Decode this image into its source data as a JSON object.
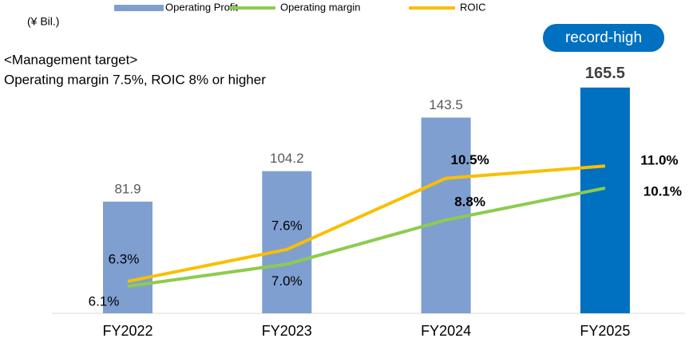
{
  "chart_data": {
    "type": "bar_line",
    "unit_label": "(¥ Bil.)",
    "annotations": [
      "<Management target>",
      "Operating margin 7.5%, ROIC 8% or higher",
      "record-high"
    ],
    "categories": [
      "FY2022",
      "FY2023",
      "FY2024",
      "FY2025"
    ],
    "series": [
      {
        "name": "Operating Profit",
        "type": "bar",
        "colors": [
          "#7f9fd1",
          "#7f9fd1",
          "#7f9fd1",
          "#0070c0"
        ],
        "values": [
          81.9,
          104.2,
          143.5,
          165.5
        ]
      },
      {
        "name": "Operating margin",
        "type": "line",
        "axis": "y2",
        "color": "#8ccc4f",
        "values": [
          6.1,
          7.0,
          8.8,
          10.1
        ],
        "value_labels": [
          "6.1%",
          "7.0%",
          "8.8%",
          "10.1%"
        ]
      },
      {
        "name": "ROIC",
        "type": "line",
        "axis": "y2",
        "color": "#f9bf00",
        "values": [
          6.3,
          7.6,
          10.5,
          11.0
        ],
        "value_labels": [
          "6.3%",
          "7.6%",
          "10.5%",
          "11.0%"
        ]
      }
    ],
    "ylim": [
      0,
      180
    ],
    "y2lim": [
      5,
      15
    ]
  }
}
